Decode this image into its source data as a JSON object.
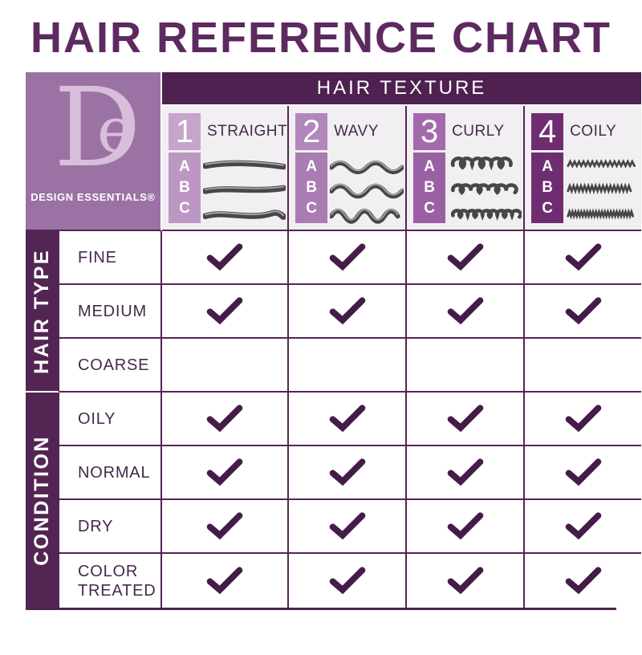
{
  "title": "HAIR REFERENCE CHART",
  "brand": {
    "monogram_d": "D",
    "monogram_e": "e",
    "name": "DESIGN ESSENTIALS®"
  },
  "texture_header": "HAIR TEXTURE",
  "columns": [
    {
      "number": "1",
      "label": "STRAIGHT",
      "type": "straight",
      "letters": [
        "A",
        "B",
        "C"
      ],
      "badge_color": "#c7a4cc",
      "strip_color": "#bd97c4",
      "hair_icon": "straight-hair-icon"
    },
    {
      "number": "2",
      "label": "WAVY",
      "type": "wavy",
      "letters": [
        "A",
        "B",
        "C"
      ],
      "badge_color": "#b287bb",
      "strip_color": "#aa7cb4",
      "hair_icon": "wavy-hair-icon"
    },
    {
      "number": "3",
      "label": "CURLY",
      "type": "curly",
      "letters": [
        "A",
        "B",
        "C"
      ],
      "badge_color": "#a26aab",
      "strip_color": "#9a60a4",
      "hair_icon": "curly-hair-icon"
    },
    {
      "number": "4",
      "label": "COILY",
      "type": "coily",
      "letters": [
        "A",
        "B",
        "C"
      ],
      "badge_color": "#6e2d71",
      "strip_color": "#6e2d71",
      "hair_icon": "coily-hair-icon"
    }
  ],
  "row_groups": [
    {
      "label": "HAIR TYPE",
      "rows": [
        {
          "label": "FINE",
          "checks": [
            true,
            true,
            true,
            true
          ]
        },
        {
          "label": "MEDIUM",
          "checks": [
            true,
            true,
            true,
            true
          ]
        },
        {
          "label": "COARSE",
          "checks": [
            false,
            false,
            false,
            false
          ]
        }
      ]
    },
    {
      "label": "CONDITION",
      "rows": [
        {
          "label": "OILY",
          "checks": [
            true,
            true,
            true,
            true
          ]
        },
        {
          "label": "NORMAL",
          "checks": [
            true,
            true,
            true,
            true
          ]
        },
        {
          "label": "DRY",
          "checks": [
            true,
            true,
            true,
            true
          ]
        },
        {
          "label": "COLOR TREATED",
          "checks": [
            true,
            true,
            true,
            true
          ]
        }
      ]
    }
  ],
  "icons": {
    "check": "checkmark-icon"
  },
  "colors": {
    "dark": "#4e2150",
    "line": "#562457",
    "title": "#5c2a60",
    "check": "#451c49",
    "bar": "#532553",
    "logobg": "#9b72a4",
    "logofg": "#d9bedb",
    "headerbg": "#f1eff1",
    "rowalt": "#efecef",
    "label": "#44294b"
  },
  "chart_data": {
    "type": "table",
    "title": "HAIR REFERENCE CHART",
    "column_header_group": "HAIR TEXTURE",
    "columns": [
      "1 STRAIGHT",
      "2 WAVY",
      "3 CURLY",
      "4 COILY"
    ],
    "column_subtypes": [
      "A",
      "B",
      "C"
    ],
    "row_groups": [
      "HAIR TYPE",
      "CONDITION"
    ],
    "rows": [
      "FINE",
      "MEDIUM",
      "COARSE",
      "OILY",
      "NORMAL",
      "DRY",
      "COLOR TREATED"
    ],
    "values": [
      [
        true,
        true,
        true,
        true
      ],
      [
        true,
        true,
        true,
        true
      ],
      [
        false,
        false,
        false,
        false
      ],
      [
        true,
        true,
        true,
        true
      ],
      [
        true,
        true,
        true,
        true
      ],
      [
        true,
        true,
        true,
        true
      ],
      [
        true,
        true,
        true,
        true
      ]
    ]
  }
}
